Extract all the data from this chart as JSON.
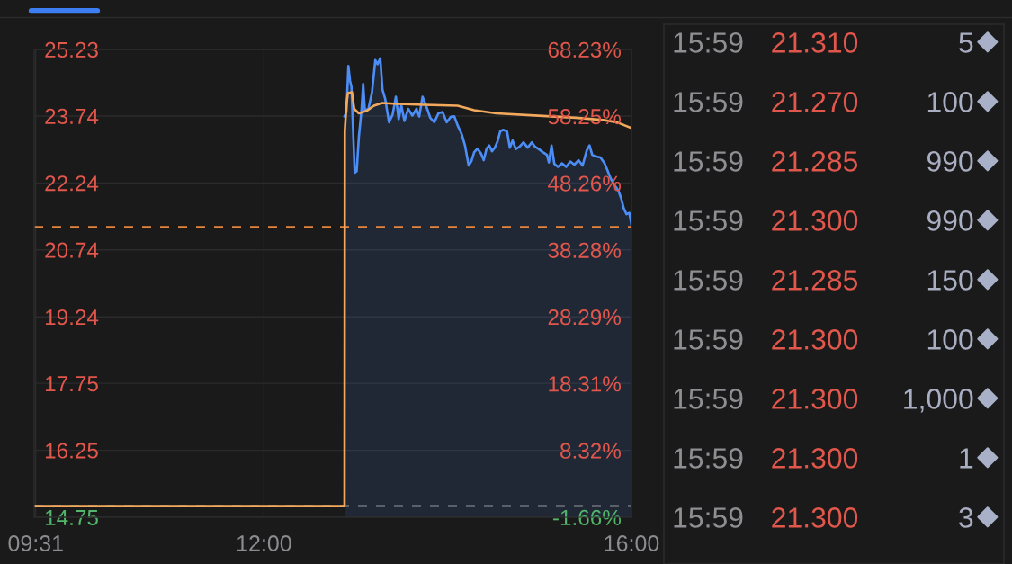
{
  "chart_data": [
    {
      "type": "line",
      "series": [
        {
          "type": "area",
          "color": "#4c8df6",
          "x": [
            12.877,
            12.898,
            12.919,
            12.937,
            12.952,
            12.988,
            13.009,
            13.033,
            13.062,
            13.08,
            13.098,
            13.137,
            13.176,
            13.212,
            13.236,
            13.266,
            13.29,
            13.319,
            13.361,
            13.4,
            13.436,
            13.466,
            13.496,
            13.529,
            13.57,
            13.615,
            13.66,
            13.69,
            13.726,
            13.765,
            13.81,
            13.854,
            13.899,
            13.944,
            13.989,
            14.034,
            14.072,
            14.108,
            14.153,
            14.189,
            14.228,
            14.258,
            14.288,
            14.324,
            14.362,
            14.392,
            14.422,
            14.452,
            14.482,
            14.512,
            14.542,
            14.572,
            14.607,
            14.646,
            14.676,
            14.706,
            14.742,
            14.781,
            14.826,
            14.87,
            14.915,
            14.951,
            14.99,
            15.035,
            15.08,
            15.101,
            15.13,
            15.16,
            15.199,
            15.244,
            15.289,
            15.334,
            15.378,
            15.423,
            15.468,
            15.513,
            15.543,
            15.573,
            15.617,
            15.662,
            15.707,
            15.737,
            15.776,
            15.812,
            15.857,
            15.887,
            15.916,
            15.946,
            15.976,
            16.0
          ],
          "values": [
            23.73,
            23.83,
            24.86,
            24.53,
            24.4,
            22.47,
            22.5,
            23.27,
            23.87,
            24.46,
            23.87,
            23.9,
            24.27,
            24.99,
            24.9,
            25.03,
            24.33,
            24.13,
            23.6,
            23.77,
            24.17,
            23.67,
            23.97,
            23.63,
            23.9,
            23.75,
            23.9,
            23.73,
            24.17,
            23.97,
            23.7,
            23.6,
            23.8,
            23.83,
            23.6,
            23.72,
            23.73,
            23.53,
            23.33,
            23.07,
            22.63,
            22.73,
            22.93,
            23.01,
            22.9,
            22.75,
            23.0,
            23.08,
            22.95,
            23.03,
            23.17,
            23.4,
            23.43,
            23.39,
            23.03,
            23.19,
            23.0,
            23.05,
            23.15,
            23.03,
            23.15,
            23.05,
            23.0,
            22.93,
            22.87,
            22.7,
            23.08,
            22.67,
            22.6,
            22.68,
            22.6,
            22.72,
            22.65,
            22.75,
            22.63,
            22.97,
            23.08,
            22.87,
            22.83,
            22.81,
            22.68,
            22.53,
            22.33,
            22.2,
            22.07,
            21.9,
            21.67,
            21.54,
            21.57,
            21.3
          ]
        },
        {
          "type": "line",
          "color": "#f3a95c",
          "x": [
            9.5,
            12.877,
            12.88,
            12.898,
            12.913,
            12.958,
            12.982,
            13.033,
            13.122,
            13.197,
            13.286,
            13.451,
            13.75,
            14.108,
            14.288,
            14.527,
            14.945,
            15.393,
            15.692,
            15.841,
            16.0
          ],
          "values": [
            15.0,
            15.0,
            23.4,
            24.0,
            24.25,
            24.27,
            23.9,
            23.8,
            23.86,
            23.97,
            24.03,
            24.01,
            23.99,
            23.97,
            23.87,
            23.8,
            23.75,
            23.7,
            23.65,
            23.6,
            23.47
          ]
        }
      ],
      "xlim": [
        9.5,
        16.0
      ],
      "xticks": [
        {
          "value": 9.517,
          "label": "09:31"
        },
        {
          "value": 12,
          "label": "12:00"
        },
        {
          "value": 16,
          "label": "16:00"
        }
      ],
      "ylim": [
        14.75,
        25.23
      ],
      "yticks": [
        25.23,
        23.74,
        22.24,
        20.74,
        19.24,
        17.75,
        16.25,
        14.75
      ],
      "y2lim": [
        -1.66,
        68.23
      ],
      "y2ticks": [
        {
          "value": 68.23,
          "label": "68.23%"
        },
        {
          "value": 58.25,
          "label": "58.25%"
        },
        {
          "value": 48.26,
          "label": "48.26%"
        },
        {
          "value": 38.28,
          "label": "38.28%"
        },
        {
          "value": 28.29,
          "label": "28.29%"
        },
        {
          "value": 18.31,
          "label": "18.31%"
        },
        {
          "value": 8.32,
          "label": "8.32%"
        },
        {
          "value": -1.66,
          "label": "-1.66%"
        }
      ],
      "ref_lines": [
        {
          "axis": "y",
          "value": 21.25,
          "color": "#e6843c",
          "line_style": "dashed"
        },
        {
          "axis": "y",
          "value": 15.0,
          "color": "#6d717b",
          "line_style": "dashed"
        }
      ],
      "grid": true
    },
    {
      "type": "other",
      "cell_labels": [
        [
          "15:59",
          "21.310",
          "5"
        ],
        [
          "15:59",
          "21.270",
          "100"
        ],
        [
          "15:59",
          "21.285",
          "990"
        ],
        [
          "15:59",
          "21.300",
          "990"
        ],
        [
          "15:59",
          "21.285",
          "150"
        ],
        [
          "15:59",
          "21.300",
          "100"
        ],
        [
          "15:59",
          "21.300",
          "1,000"
        ],
        [
          "15:59",
          "21.300",
          "1"
        ],
        [
          "15:59",
          "21.300",
          "3"
        ]
      ]
    }
  ]
}
